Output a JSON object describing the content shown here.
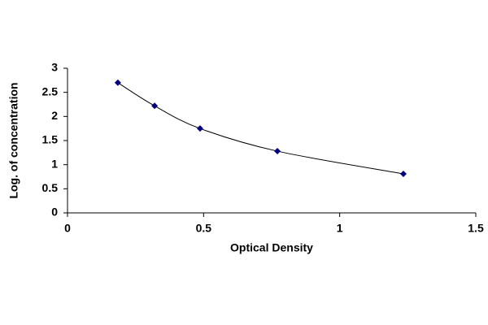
{
  "chart_data": {
    "type": "scatter",
    "x_label": "Optical Density",
    "y_label": "Log. of concentration",
    "series": [
      {
        "x": [
          0.185,
          0.32,
          0.487,
          0.771,
          1.234
        ],
        "values": [
          2.7,
          2.22,
          1.75,
          1.28,
          0.81
        ],
        "color": "#000080"
      }
    ],
    "line_color": "#000000",
    "xlim": [
      0,
      1.5
    ],
    "xticks": [
      0,
      0.5,
      1,
      1.5
    ],
    "ylim": [
      0,
      3
    ],
    "yticks": [
      0,
      0.5,
      1,
      1.5,
      2,
      2.5,
      3
    ],
    "grid": false
  }
}
